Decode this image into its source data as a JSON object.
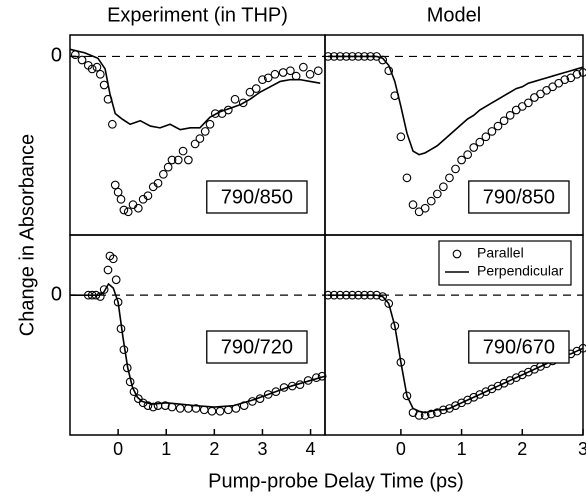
{
  "figure": {
    "xlabel": "Pump-probe Delay Time (ps)",
    "ylabel": "Change in Absorbance"
  },
  "chart_data": [
    {
      "type": "line",
      "title": "Experiment (in THP)",
      "annotation": "790/850",
      "xlim": [
        -1,
        4.3
      ],
      "ylim": [
        -1,
        0.12
      ],
      "yticks": [
        0
      ],
      "zero_line": true,
      "series": [
        {
          "color": "#000000",
          "style": "markers",
          "x": [
            -0.89,
            -0.75,
            -0.62,
            -0.54,
            -0.44,
            -0.37,
            -0.29,
            -0.21,
            -0.12,
            -0.06,
            0,
            0.06,
            0.12,
            0.21,
            0.31,
            0.42,
            0.52,
            0.62,
            0.73,
            0.83,
            0.94,
            1.04,
            1.12,
            1.25,
            1.35,
            1.46,
            1.6,
            1.7,
            1.81,
            1.91,
            2.02,
            2.16,
            2.29,
            2.43,
            2.6,
            2.74,
            2.87,
            3.0,
            3.12,
            3.26,
            3.43,
            3.58,
            3.7,
            3.85,
            3.99,
            4.16
          ],
          "values": [
            0.01,
            -0.02,
            -0.05,
            -0.07,
            -0.06,
            -0.1,
            -0.16,
            -0.24,
            -0.38,
            -0.72,
            -0.76,
            -0.8,
            -0.86,
            -0.87,
            -0.83,
            -0.85,
            -0.8,
            -0.78,
            -0.73,
            -0.71,
            -0.66,
            -0.62,
            -0.58,
            -0.58,
            -0.53,
            -0.58,
            -0.49,
            -0.46,
            -0.42,
            -0.38,
            -0.32,
            -0.32,
            -0.3,
            -0.24,
            -0.26,
            -0.2,
            -0.18,
            -0.13,
            -0.12,
            -0.1,
            -0.09,
            -0.08,
            -0.11,
            -0.06,
            -0.1,
            -0.08
          ]
        },
        {
          "color": "#000000",
          "style": "line",
          "x": [
            -1.0,
            -0.69,
            -0.42,
            -0.27,
            -0.17,
            -0.06,
            0.08,
            0.25,
            0.46,
            0.67,
            0.87,
            1.08,
            1.29,
            1.5,
            1.7,
            1.91,
            2.12,
            2.33,
            2.54,
            2.74,
            2.95,
            3.16,
            3.37,
            3.58,
            3.78,
            3.99,
            4.2
          ],
          "values": [
            0.04,
            0.02,
            -0.01,
            -0.07,
            -0.21,
            -0.32,
            -0.35,
            -0.38,
            -0.36,
            -0.39,
            -0.4,
            -0.38,
            -0.41,
            -0.4,
            -0.4,
            -0.34,
            -0.31,
            -0.29,
            -0.27,
            -0.24,
            -0.2,
            -0.17,
            -0.14,
            -0.13,
            -0.13,
            -0.14,
            -0.15
          ]
        }
      ]
    },
    {
      "type": "line",
      "title": "Model",
      "annotation": "790/850",
      "xlim": [
        -1.25,
        3
      ],
      "ylim": [
        -1,
        0.12
      ],
      "zero_line": true,
      "series": [
        {
          "color": "#000000",
          "style": "markers",
          "x": [
            -1.2,
            -1.1,
            -1.0,
            -0.9,
            -0.8,
            -0.7,
            -0.6,
            -0.5,
            -0.4,
            -0.3,
            -0.2,
            -0.1,
            0,
            0.1,
            0.2,
            0.3,
            0.4,
            0.5,
            0.6,
            0.7,
            0.8,
            0.9,
            1.0,
            1.1,
            1.2,
            1.3,
            1.4,
            1.5,
            1.6,
            1.7,
            1.8,
            1.9,
            2.0,
            2.1,
            2.2,
            2.3,
            2.4,
            2.5,
            2.6,
            2.7,
            2.8,
            2.9,
            3.0
          ],
          "values": [
            0,
            0,
            0,
            0,
            0,
            0,
            0,
            0,
            0,
            -0.02,
            -0.08,
            -0.22,
            -0.45,
            -0.68,
            -0.83,
            -0.87,
            -0.85,
            -0.81,
            -0.77,
            -0.73,
            -0.68,
            -0.63,
            -0.58,
            -0.55,
            -0.51,
            -0.48,
            -0.45,
            -0.42,
            -0.39,
            -0.36,
            -0.33,
            -0.3,
            -0.28,
            -0.26,
            -0.23,
            -0.21,
            -0.19,
            -0.17,
            -0.15,
            -0.13,
            -0.12,
            -0.1,
            -0.09
          ]
        },
        {
          "color": "#000000",
          "style": "line",
          "x": [
            -1.2,
            -1.1,
            -1.0,
            -0.9,
            -0.8,
            -0.7,
            -0.6,
            -0.5,
            -0.4,
            -0.3,
            -0.2,
            -0.1,
            0,
            0.1,
            0.2,
            0.3,
            0.4,
            0.5,
            0.6,
            0.7,
            0.8,
            0.9,
            1.0,
            1.1,
            1.2,
            1.3,
            1.4,
            1.5,
            1.6,
            1.7,
            1.8,
            1.9,
            2.0,
            2.1,
            2.2,
            2.3,
            2.4,
            2.5,
            2.6,
            2.7,
            2.8,
            2.9,
            3.0
          ],
          "values": [
            0,
            0,
            0,
            0,
            0,
            0,
            0,
            0,
            0,
            -0.01,
            -0.05,
            -0.14,
            -0.28,
            -0.43,
            -0.53,
            -0.55,
            -0.54,
            -0.52,
            -0.5,
            -0.47,
            -0.44,
            -0.41,
            -0.38,
            -0.35,
            -0.33,
            -0.3,
            -0.28,
            -0.26,
            -0.24,
            -0.22,
            -0.2,
            -0.18,
            -0.17,
            -0.15,
            -0.14,
            -0.13,
            -0.12,
            -0.11,
            -0.1,
            -0.09,
            -0.08,
            -0.07,
            -0.06
          ]
        }
      ]
    },
    {
      "type": "line",
      "annotation": "790/720",
      "xlim": [
        -1,
        4.3
      ],
      "ylim": [
        -1,
        0.43
      ],
      "xticks": [
        0,
        1,
        2,
        3,
        4
      ],
      "yticks": [
        0
      ],
      "zero_line": true,
      "series": [
        {
          "color": "#000000",
          "style": "markers",
          "x": [
            -0.62,
            -0.54,
            -0.46,
            -0.37,
            -0.29,
            -0.21,
            -0.17,
            -0.1,
            -0.04,
            0,
            0.06,
            0.12,
            0.19,
            0.25,
            0.33,
            0.42,
            0.52,
            0.62,
            0.73,
            0.83,
            0.98,
            1.12,
            1.29,
            1.46,
            1.62,
            1.79,
            1.95,
            2.12,
            2.29,
            2.45,
            2.62,
            2.79,
            2.95,
            3.12,
            3.28,
            3.45,
            3.62,
            3.78,
            3.95,
            4.12,
            4.24
          ],
          "values": [
            0,
            0,
            0,
            -0.01,
            0.04,
            0.18,
            0.28,
            0.26,
            0.11,
            -0.05,
            -0.24,
            -0.39,
            -0.52,
            -0.62,
            -0.69,
            -0.74,
            -0.77,
            -0.79,
            -0.8,
            -0.79,
            -0.79,
            -0.8,
            -0.81,
            -0.81,
            -0.81,
            -0.82,
            -0.83,
            -0.83,
            -0.82,
            -0.81,
            -0.79,
            -0.76,
            -0.74,
            -0.71,
            -0.69,
            -0.66,
            -0.65,
            -0.64,
            -0.61,
            -0.59,
            -0.58
          ]
        },
        {
          "color": "#000000",
          "style": "line",
          "x": [
            -1,
            -0.6,
            -0.4,
            -0.3,
            -0.2,
            -0.1,
            0,
            0.1,
            0.2,
            0.3,
            0.4,
            0.5,
            0.7,
            1.0,
            1.3,
            1.6,
            2.0,
            2.4,
            2.8,
            3.2,
            3.6,
            4.0,
            4.3
          ],
          "values": [
            0,
            0,
            0,
            0.02,
            0.08,
            0.05,
            -0.05,
            -0.3,
            -0.52,
            -0.66,
            -0.73,
            -0.76,
            -0.78,
            -0.77,
            -0.78,
            -0.79,
            -0.8,
            -0.79,
            -0.75,
            -0.7,
            -0.65,
            -0.61,
            -0.58
          ]
        }
      ]
    },
    {
      "type": "line",
      "annotation": "790/670",
      "xlim": [
        -1.25,
        3
      ],
      "ylim": [
        -1,
        0.43
      ],
      "xticks": [
        0,
        1,
        2,
        3
      ],
      "zero_line": true,
      "legend": "upper right",
      "series": [
        {
          "name": "Parallel",
          "color": "#000000",
          "style": "markers",
          "x": [
            -1.2,
            -1.1,
            -1.0,
            -0.9,
            -0.8,
            -0.7,
            -0.6,
            -0.5,
            -0.4,
            -0.3,
            -0.2,
            -0.1,
            0,
            0.1,
            0.2,
            0.3,
            0.4,
            0.5,
            0.6,
            0.7,
            0.8,
            0.9,
            1.0,
            1.1,
            1.2,
            1.3,
            1.4,
            1.5,
            1.6,
            1.7,
            1.8,
            1.9,
            2.0,
            2.1,
            2.2,
            2.3,
            2.4,
            2.5,
            2.6,
            2.7,
            2.8,
            2.9,
            3.0
          ],
          "values": [
            0,
            0,
            0,
            0,
            0,
            0,
            0,
            0,
            0,
            -0.01,
            -0.06,
            -0.22,
            -0.48,
            -0.72,
            -0.84,
            -0.86,
            -0.86,
            -0.85,
            -0.84,
            -0.82,
            -0.81,
            -0.79,
            -0.77,
            -0.75,
            -0.73,
            -0.71,
            -0.69,
            -0.67,
            -0.65,
            -0.63,
            -0.61,
            -0.59,
            -0.57,
            -0.55,
            -0.53,
            -0.51,
            -0.49,
            -0.47,
            -0.45,
            -0.43,
            -0.42,
            -0.4,
            -0.38
          ]
        },
        {
          "name": "Perpendicular",
          "color": "#000000",
          "style": "line",
          "x": [
            -1.2,
            -1.1,
            -1.0,
            -0.9,
            -0.8,
            -0.7,
            -0.6,
            -0.5,
            -0.4,
            -0.3,
            -0.2,
            -0.1,
            0,
            0.1,
            0.2,
            0.3,
            0.4,
            0.5,
            0.6,
            0.7,
            0.8,
            0.9,
            1.0,
            1.1,
            1.2,
            1.3,
            1.4,
            1.5,
            1.6,
            1.7,
            1.8,
            1.9,
            2.0,
            2.1,
            2.2,
            2.3,
            2.4,
            2.5,
            2.6,
            2.7,
            2.8,
            2.9,
            3.0
          ],
          "values": [
            0,
            0,
            0,
            0,
            0,
            0,
            0,
            0,
            0,
            -0.01,
            -0.06,
            -0.22,
            -0.48,
            -0.72,
            -0.81,
            -0.83,
            -0.84,
            -0.83,
            -0.82,
            -0.82,
            -0.81,
            -0.79,
            -0.77,
            -0.75,
            -0.73,
            -0.71,
            -0.69,
            -0.67,
            -0.65,
            -0.63,
            -0.61,
            -0.59,
            -0.57,
            -0.55,
            -0.53,
            -0.51,
            -0.49,
            -0.47,
            -0.45,
            -0.43,
            -0.42,
            -0.4,
            -0.38
          ]
        }
      ]
    }
  ]
}
